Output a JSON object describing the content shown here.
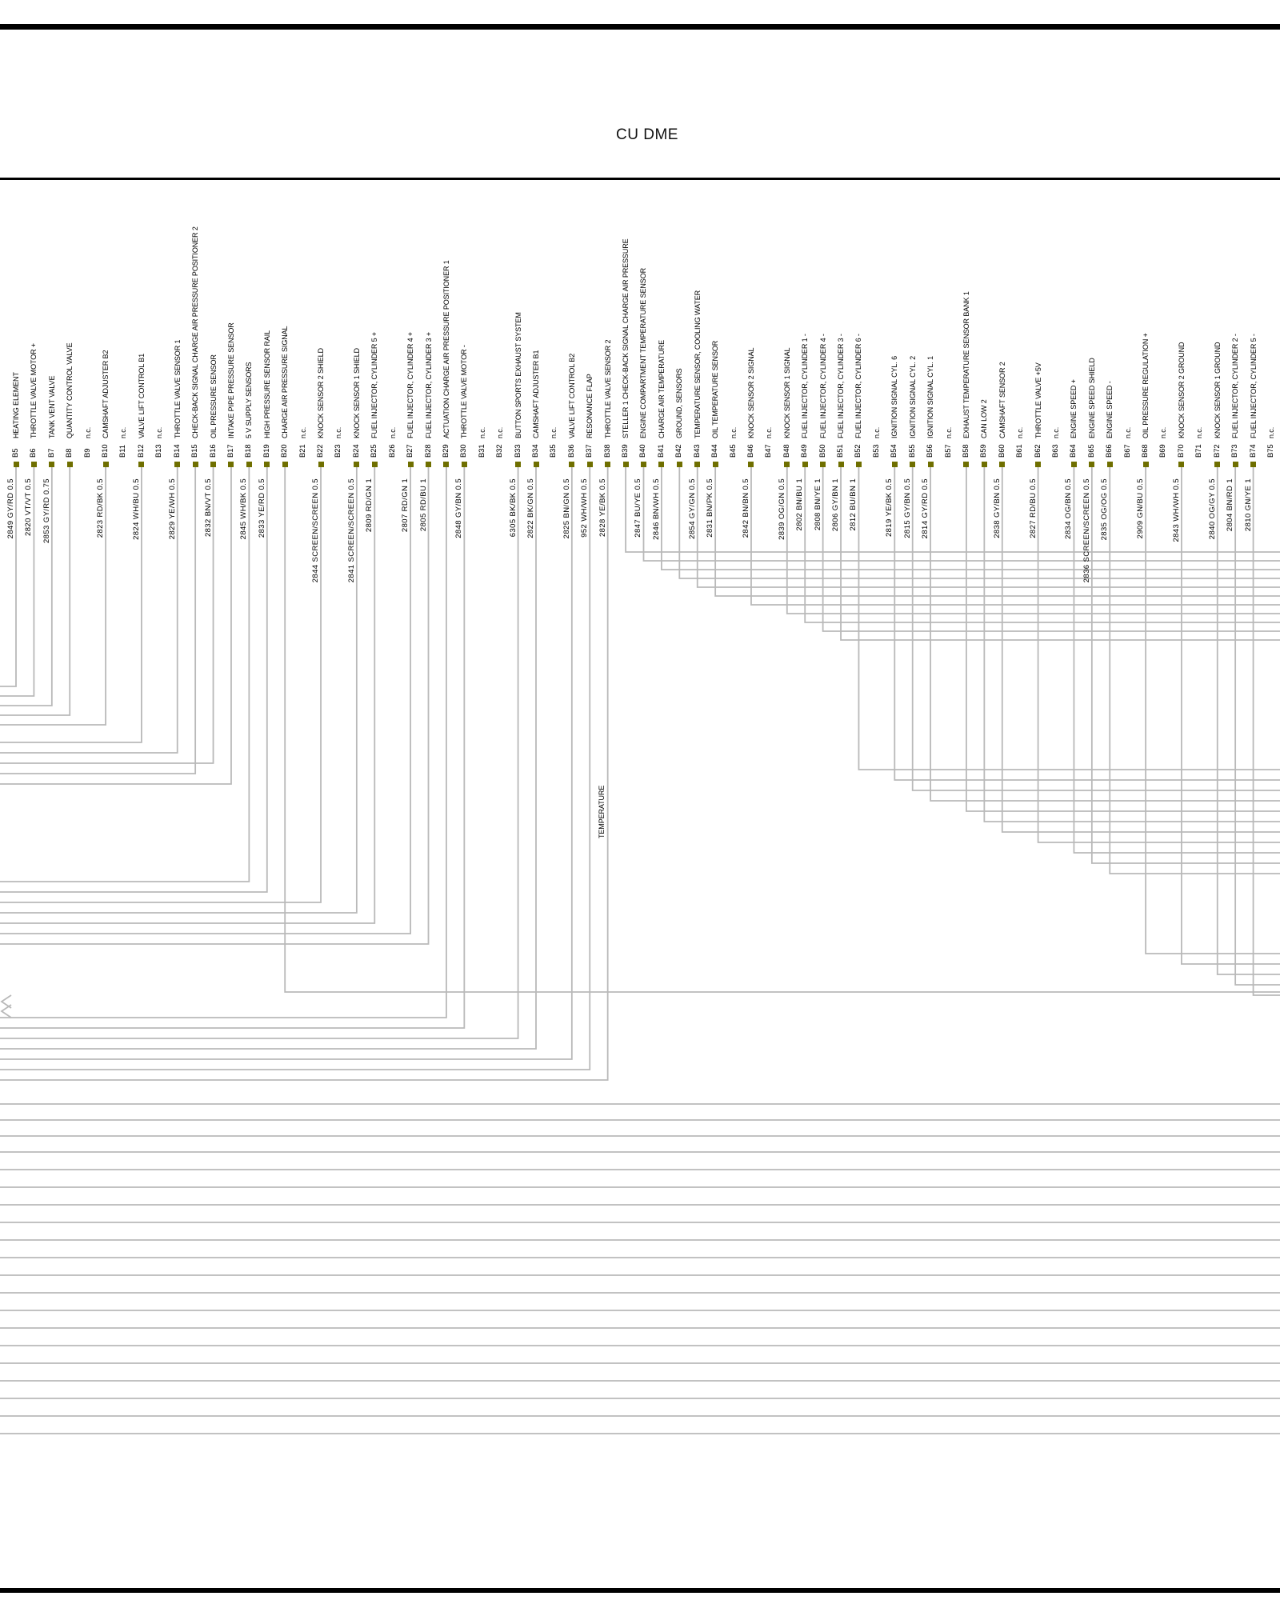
{
  "title": "CU DME",
  "annotations": {
    "temperature": "TEMPERATURE"
  },
  "colors": {
    "wire": "#b9b9b9",
    "square": "#6f6f00",
    "rule": "#000000"
  },
  "connector": {
    "pins": [
      {
        "id": "B5",
        "desc": "HEATING ELEMENT",
        "wire": "2849 GY/RD 0.5",
        "route": {
          "dir": "left",
          "turn": 858
        }
      },
      {
        "id": "B6",
        "desc": "THROTTLE VALVE MOTOR +",
        "wire": "2820 VT/VT 0.5",
        "route": {
          "dir": "left",
          "turn": 870
        }
      },
      {
        "id": "B7",
        "desc": "TANK VENT VALVE",
        "wire": "2853 GY/RD 0.75",
        "route": {
          "dir": "left",
          "turn": 882
        }
      },
      {
        "id": "B8",
        "desc": "QUANTITY CONTROL VALVE",
        "wire": "",
        "route": {
          "dir": "left",
          "turn": 894
        }
      },
      {
        "id": "B9",
        "desc": "n.c.",
        "wire": "",
        "route": null
      },
      {
        "id": "B10",
        "desc": "CAMSHAFT ADJUSTER B2",
        "wire": "2823 RD/BK 0.5",
        "route": {
          "dir": "left",
          "turn": 906
        }
      },
      {
        "id": "B11",
        "desc": "n.c.",
        "wire": "",
        "route": null
      },
      {
        "id": "B12",
        "desc": "VALVE LIFT CONTROL B1",
        "wire": "2824 WH/BU 0.5",
        "route": {
          "dir": "left",
          "turn": 928
        }
      },
      {
        "id": "B13",
        "desc": "n.c.",
        "wire": "",
        "route": null
      },
      {
        "id": "B14",
        "desc": "THROTTLE VALVE SENSOR 1",
        "wire": "2829 YE/WH 0.5",
        "route": {
          "dir": "left",
          "turn": 941
        }
      },
      {
        "id": "B15",
        "desc": "CHECK-BACK SIGNAL CHARGE AIR PRESSURE POSITIONER 2",
        "wire": "",
        "route": {
          "dir": "left",
          "turn": 967
        }
      },
      {
        "id": "B16",
        "desc": "OIL PRESSURE SENSOR",
        "wire": "2832 BN/VT 0.5",
        "route": {
          "dir": "left",
          "turn": 954
        }
      },
      {
        "id": "B17",
        "desc": "INTAKE PIPE PRESSURE SENSOR",
        "wire": "",
        "route": {
          "dir": "left",
          "turn": 980
        }
      },
      {
        "id": "B18",
        "desc": "5 V SUPPLY SENSORS",
        "wire": "2845 WH/BK 0.5",
        "route": {
          "dir": "left",
          "turn": 1102
        }
      },
      {
        "id": "B19",
        "desc": "HIGH PRESSURE SENSOR RAIL",
        "wire": "2833 YE/RD 0.5",
        "route": {
          "dir": "left",
          "turn": 1115
        }
      },
      {
        "id": "B20",
        "desc": "CHARGE AIR PRESSURE SIGNAL",
        "wire": "",
        "route": {
          "dir": "right",
          "turn": 1240
        }
      },
      {
        "id": "B21",
        "desc": "n.c.",
        "wire": "",
        "route": null
      },
      {
        "id": "B22",
        "desc": "KNOCK SENSOR 2 SHIELD",
        "wire": "2844 SCREEN/SCREEN 0.5",
        "route": {
          "dir": "left",
          "turn": 1128
        }
      },
      {
        "id": "B23",
        "desc": "n.c.",
        "wire": "",
        "route": null
      },
      {
        "id": "B24",
        "desc": "KNOCK SENSOR 1 SHIELD",
        "wire": "2841 SCREEN/SCREEN 0.5",
        "route": {
          "dir": "left",
          "turn": 1141
        }
      },
      {
        "id": "B25",
        "desc": "FUEL INJECTOR, CYLINDER 5 +",
        "wire": "2809 RD/GN 1",
        "route": {
          "dir": "left",
          "turn": 1154
        }
      },
      {
        "id": "B26",
        "desc": "n.c.",
        "wire": "",
        "route": null
      },
      {
        "id": "B27",
        "desc": "FUEL INJECTOR, CYLINDER 4 +",
        "wire": "2807 RD/GN 1",
        "route": {
          "dir": "left",
          "turn": 1167
        }
      },
      {
        "id": "B28",
        "desc": "FUEL INJECTOR, CYLINDER 3 +",
        "wire": "2805 RD/BU 1",
        "route": {
          "dir": "left",
          "turn": 1180
        }
      },
      {
        "id": "B29",
        "desc": "ACTUATION CHARGE AIR PRESSURE POSITIONER 1",
        "wire": "",
        "route": {
          "dir": "left",
          "turn": 1272
        }
      },
      {
        "id": "B30",
        "desc": "THROTTLE VALVE MOTOR -",
        "wire": "2848 GY/BN 0.5",
        "route": {
          "dir": "left",
          "turn": 1285
        }
      },
      {
        "id": "B31",
        "desc": "n.c.",
        "wire": "",
        "route": null
      },
      {
        "id": "B32",
        "desc": "n.c.",
        "wire": "",
        "route": null
      },
      {
        "id": "B33",
        "desc": "BUTTON SPORTS EXHAUST SYSTEM",
        "wire": "6305 BK/BK 0.5",
        "route": {
          "dir": "left",
          "turn": 1298
        }
      },
      {
        "id": "B34",
        "desc": "CAMSHAFT ADJUSTER B1",
        "wire": "2822 BK/GN 0.5",
        "route": {
          "dir": "left",
          "turn": 1311
        }
      },
      {
        "id": "B35",
        "desc": "n.c.",
        "wire": "",
        "route": null
      },
      {
        "id": "B36",
        "desc": "VALVE LIFT CONTROL B2",
        "wire": "2825 BN/GN 0.5",
        "route": {
          "dir": "left",
          "turn": 1324
        }
      },
      {
        "id": "B37",
        "desc": "RESONANCE FLAP",
        "wire": "952 WH/WH 0.5",
        "route": {
          "dir": "left",
          "turn": 1337
        }
      },
      {
        "id": "B38",
        "desc": "THROTTLE VALVE SENSOR 2",
        "wire": "2828 YE/BK 0.5",
        "route": {
          "dir": "left",
          "turn": 1350
        }
      },
      {
        "id": "B39",
        "desc": "STELLER 1 CHECK-BACK SIGNAL CHARGE AIR PRESSURE",
        "wire": "",
        "route": {
          "dir": "right",
          "turn": 690
        }
      },
      {
        "id": "B40",
        "desc": "ENGINE COMPARTMENT TEMPERATURE SENSOR",
        "wire": "2847 BU/YE 0.5",
        "route": {
          "dir": "right",
          "turn": 701
        }
      },
      {
        "id": "B41",
        "desc": "CHARGE AIR TEMPERATURE",
        "wire": "2846 BN/WH 0.5",
        "route": {
          "dir": "right",
          "turn": 712
        }
      },
      {
        "id": "B42",
        "desc": "GROUND, SENSORS",
        "wire": "",
        "route": {
          "dir": "right",
          "turn": 723
        }
      },
      {
        "id": "B43",
        "desc": "TEMPERATURE SENSOR, COOLING WATER",
        "wire": "2854 GY/GN 0.5",
        "route": {
          "dir": "right",
          "turn": 734
        }
      },
      {
        "id": "B44",
        "desc": "OIL TEMPERATURE SENSOR",
        "wire": "2831 BN/PK 0.5",
        "route": {
          "dir": "right",
          "turn": 745
        }
      },
      {
        "id": "B45",
        "desc": "n.c.",
        "wire": "",
        "route": null
      },
      {
        "id": "B46",
        "desc": "KNOCK SENSOR 2 SIGNAL",
        "wire": "2842 BN/BN 0.5",
        "route": {
          "dir": "right",
          "turn": 756
        }
      },
      {
        "id": "B47",
        "desc": "n.c.",
        "wire": "",
        "route": null
      },
      {
        "id": "B48",
        "desc": "KNOCK SENSOR 1 SIGNAL",
        "wire": "2839 OG/GN 0.5",
        "route": {
          "dir": "right",
          "turn": 767
        }
      },
      {
        "id": "B49",
        "desc": "FUEL INJECTOR, CYLINDER 1 -",
        "wire": "2802 BN/BU 1",
        "route": {
          "dir": "right",
          "turn": 778
        }
      },
      {
        "id": "B50",
        "desc": "FUEL INJECTOR, CYLINDER 4 -",
        "wire": "2808 BN/YE 1",
        "route": {
          "dir": "right",
          "turn": 789
        }
      },
      {
        "id": "B51",
        "desc": "FUEL INJECTOR, CYLINDER 3 -",
        "wire": "2806 GY/BN 1",
        "route": {
          "dir": "right",
          "turn": 800
        }
      },
      {
        "id": "B52",
        "desc": "FUEL INJECTOR, CYLINDER 6 -",
        "wire": "2812 BU/BN 1",
        "route": {
          "dir": "right",
          "turn": 962
        }
      },
      {
        "id": "B53",
        "desc": "n.c.",
        "wire": "",
        "route": null
      },
      {
        "id": "B54",
        "desc": "IGNITION SIGNAL CYL. 6",
        "wire": "2819 YE/BK 0.5",
        "route": {
          "dir": "right",
          "turn": 975
        }
      },
      {
        "id": "B55",
        "desc": "IGNITION SIGNAL CYL. 2",
        "wire": "2815 GY/BN 0.5",
        "route": {
          "dir": "right",
          "turn": 988
        }
      },
      {
        "id": "B56",
        "desc": "IGNITION SIGNAL CYL. 1",
        "wire": "2814 GY/RD 0.5",
        "route": {
          "dir": "right",
          "turn": 1001
        }
      },
      {
        "id": "B57",
        "desc": "n.c.",
        "wire": "",
        "route": null
      },
      {
        "id": "B58",
        "desc": "EXHAUST TEMPERATURE SENSOR BANK 1",
        "wire": "",
        "route": {
          "dir": "right",
          "turn": 1014
        }
      },
      {
        "id": "B59",
        "desc": "CAN LOW 2",
        "wire": "",
        "route": {
          "dir": "right",
          "turn": 1027
        }
      },
      {
        "id": "B60",
        "desc": "CAMSHAFT SENSOR 2",
        "wire": "2838 GY/BN 0.5",
        "route": {
          "dir": "right",
          "turn": 1040
        }
      },
      {
        "id": "B61",
        "desc": "n.c.",
        "wire": "",
        "route": null
      },
      {
        "id": "B62",
        "desc": "THROTTLE VALVE +5V",
        "wire": "2827 RD/BU 0.5",
        "route": {
          "dir": "right",
          "turn": 1053
        }
      },
      {
        "id": "B63",
        "desc": "n.c.",
        "wire": "",
        "route": null
      },
      {
        "id": "B64",
        "desc": "ENGINE SPEED +",
        "wire": "2834 OG/BN 0.5",
        "route": {
          "dir": "right",
          "turn": 1066
        }
      },
      {
        "id": "B65",
        "desc": "ENGINE SPEED SHIELD",
        "wire": "2836 SCREEN/SCREEN 0.5",
        "route": {
          "dir": "right",
          "turn": 1079
        }
      },
      {
        "id": "B66",
        "desc": "ENGINE SPEED -",
        "wire": "2835 OG/OG 0.5",
        "route": {
          "dir": "right",
          "turn": 1092
        }
      },
      {
        "id": "B67",
        "desc": "n.c.",
        "wire": "",
        "route": null
      },
      {
        "id": "B68",
        "desc": "OIL PRESSURE REGULATION +",
        "wire": "2909 GN/BU 0.5",
        "route": {
          "dir": "right",
          "turn": 1192
        }
      },
      {
        "id": "B69",
        "desc": "n.c.",
        "wire": "",
        "route": null
      },
      {
        "id": "B70",
        "desc": "KNOCK SENSOR 2 GROUND",
        "wire": "2843 WH/WH 0.5",
        "route": {
          "dir": "right",
          "turn": 1205
        }
      },
      {
        "id": "B71",
        "desc": "n.c.",
        "wire": "",
        "route": null
      },
      {
        "id": "B72",
        "desc": "KNOCK SENSOR 1 GROUND",
        "wire": "2840 OG/GY 0.5",
        "route": {
          "dir": "right",
          "turn": 1218
        }
      },
      {
        "id": "B73",
        "desc": "FUEL INJECTOR, CYLINDER 2 -",
        "wire": "2804 BN/RD 1",
        "route": {
          "dir": "right",
          "turn": 1231
        }
      },
      {
        "id": "B74",
        "desc": "FUEL INJECTOR, CYLINDER 5 -",
        "wire": "2810 GN/YE 1",
        "route": {
          "dir": "right",
          "turn": 1244
        }
      },
      {
        "id": "B75",
        "desc": "n.c.",
        "wire": "",
        "route": null
      }
    ]
  },
  "pass_through_wires": [
    1380,
    1400,
    1420,
    1440,
    1462,
    1484,
    1506,
    1528,
    1550,
    1572,
    1594,
    1616,
    1638,
    1660,
    1682,
    1704,
    1726,
    1748,
    1770,
    1792
  ],
  "chevrons": [
    1252,
    1264
  ]
}
